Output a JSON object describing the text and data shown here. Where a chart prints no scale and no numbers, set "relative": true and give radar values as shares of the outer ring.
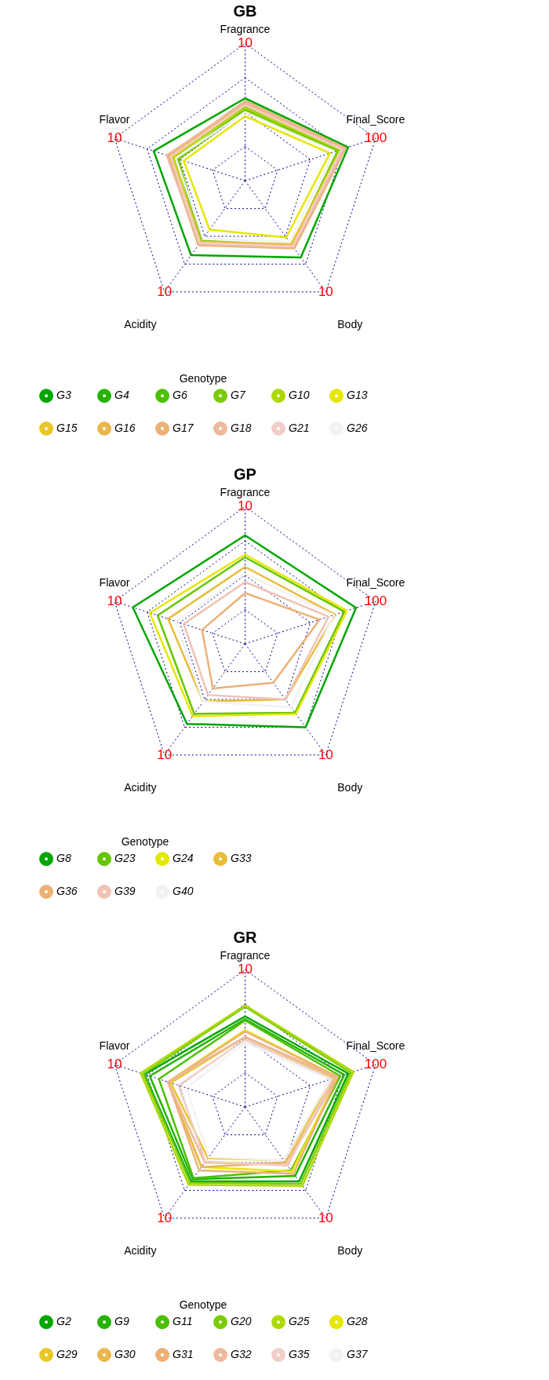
{
  "chart_data": [
    {
      "type": "radar",
      "title": "GB",
      "relative": true,
      "grid": true,
      "legend": "bottom",
      "legend_title": "Genotype",
      "line_style": "solid",
      "categories": [
        "Fragrance",
        "Final_Score",
        "Body",
        "Acidity",
        "Flavor"
      ],
      "annotations": [
        "10",
        "100",
        "10",
        "10",
        "10"
      ],
      "series": [
        {
          "name": "G3",
          "color": "#00a600",
          "values": [
            0.6,
            0.79,
            0.69,
            0.67,
            0.7
          ]
        },
        {
          "name": "G4",
          "color": "#24b300",
          "values": [
            0.54,
            0.74,
            0.6,
            0.56,
            0.55
          ]
        },
        {
          "name": "G6",
          "color": "#4cbf00",
          "values": [
            0.52,
            0.72,
            0.6,
            0.55,
            0.52
          ]
        },
        {
          "name": "G7",
          "color": "#7acc00",
          "values": [
            0.51,
            0.71,
            0.58,
            0.54,
            0.51
          ]
        },
        {
          "name": "G10",
          "color": "#add900",
          "values": [
            0.53,
            0.73,
            0.58,
            0.55,
            0.55
          ]
        },
        {
          "name": "G13",
          "color": "#e6e600",
          "values": [
            0.47,
            0.65,
            0.51,
            0.44,
            0.47
          ]
        },
        {
          "name": "G15",
          "color": "#e8c727",
          "values": [
            0.55,
            0.74,
            0.57,
            0.55,
            0.56
          ]
        },
        {
          "name": "G16",
          "color": "#eab64e",
          "values": [
            0.56,
            0.75,
            0.58,
            0.55,
            0.58
          ]
        },
        {
          "name": "G17",
          "color": "#ecb176",
          "values": [
            0.58,
            0.77,
            0.61,
            0.58,
            0.59
          ]
        },
        {
          "name": "G18",
          "color": "#eeb99f",
          "values": [
            0.57,
            0.76,
            0.6,
            0.57,
            0.6
          ]
        },
        {
          "name": "G21",
          "color": "#f0cfc8",
          "values": [
            0.55,
            0.74,
            0.59,
            0.56,
            0.57
          ]
        },
        {
          "name": "G26",
          "color": "#f2f2f2",
          "values": [
            0.5,
            0.68,
            0.55,
            0.52,
            0.53
          ]
        }
      ]
    },
    {
      "type": "radar",
      "title": "GP",
      "relative": true,
      "grid": true,
      "legend": "bottom",
      "legend_title": "Genotype",
      "line_style": "solid",
      "categories": [
        "Fragrance",
        "Final_Score",
        "Body",
        "Acidity",
        "Flavor"
      ],
      "annotations": [
        "10",
        "100",
        "10",
        "10",
        "10"
      ],
      "series": [
        {
          "name": "G8",
          "color": "#00a600",
          "values": [
            0.79,
            0.85,
            0.75,
            0.72,
            0.86
          ]
        },
        {
          "name": "G23",
          "color": "#63c600",
          "values": [
            0.63,
            0.76,
            0.62,
            0.63,
            0.67
          ]
        },
        {
          "name": "G24",
          "color": "#e6e600",
          "values": [
            0.65,
            0.78,
            0.63,
            0.65,
            0.73
          ]
        },
        {
          "name": "G33",
          "color": "#e9bd3a",
          "values": [
            0.56,
            0.69,
            0.5,
            0.52,
            0.59
          ]
        },
        {
          "name": "G36",
          "color": "#ecb176",
          "values": [
            0.37,
            0.57,
            0.35,
            0.4,
            0.33
          ]
        },
        {
          "name": "G39",
          "color": "#efc2b3",
          "values": [
            0.45,
            0.64,
            0.5,
            0.46,
            0.47
          ]
        },
        {
          "name": "G40",
          "color": "#f2f2f2",
          "values": [
            0.51,
            0.68,
            0.57,
            0.52,
            0.53
          ]
        }
      ]
    },
    {
      "type": "radar",
      "title": "GR",
      "relative": true,
      "grid": true,
      "legend": "bottom",
      "legend_title": "Genotype",
      "line_style": "solid",
      "categories": [
        "Fragrance",
        "Final_Score",
        "Body",
        "Acidity",
        "Flavor"
      ],
      "annotations": [
        "10",
        "100",
        "10",
        "10",
        "10"
      ],
      "series": [
        {
          "name": "G2",
          "color": "#00a600",
          "values": [
            0.66,
            0.79,
            0.67,
            0.67,
            0.77
          ]
        },
        {
          "name": "G9",
          "color": "#24b300",
          "values": [
            0.64,
            0.76,
            0.62,
            0.65,
            0.73
          ]
        },
        {
          "name": "G11",
          "color": "#4cbf00",
          "values": [
            0.63,
            0.73,
            0.57,
            0.64,
            0.66
          ]
        },
        {
          "name": "G20",
          "color": "#7acc00",
          "values": [
            0.73,
            0.81,
            0.69,
            0.68,
            0.78
          ]
        },
        {
          "name": "G25",
          "color": "#add900",
          "values": [
            0.74,
            0.83,
            0.71,
            0.7,
            0.8
          ]
        },
        {
          "name": "G28",
          "color": "#e6e600",
          "values": [
            0.56,
            0.71,
            0.58,
            0.54,
            0.59
          ]
        },
        {
          "name": "G29",
          "color": "#e8c727",
          "values": [
            0.51,
            0.68,
            0.48,
            0.46,
            0.57
          ]
        },
        {
          "name": "G30",
          "color": "#eab64e",
          "values": [
            0.51,
            0.7,
            0.5,
            0.54,
            0.59
          ]
        },
        {
          "name": "G31",
          "color": "#ecb176",
          "values": [
            0.55,
            0.71,
            0.6,
            0.57,
            0.59
          ]
        },
        {
          "name": "G32",
          "color": "#eeb99f",
          "values": [
            0.51,
            0.7,
            0.52,
            0.5,
            0.59
          ]
        },
        {
          "name": "G35",
          "color": "#f0cfc8",
          "values": [
            0.49,
            0.67,
            0.53,
            0.49,
            0.51
          ]
        },
        {
          "name": "G37",
          "color": "#f2f2f2",
          "values": [
            0.47,
            0.65,
            0.48,
            0.45,
            0.45
          ]
        }
      ]
    }
  ]
}
